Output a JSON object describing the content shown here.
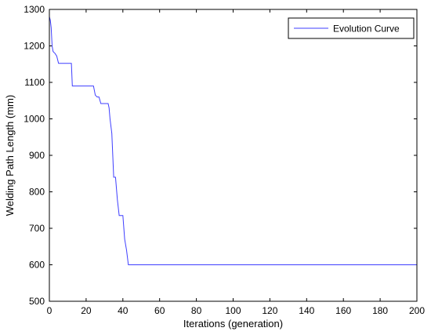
{
  "chart_data": {
    "type": "line",
    "title": "",
    "xlabel": "Iterations (generation)",
    "ylabel": "Welding Path Length (mm)",
    "xlim": [
      0,
      200
    ],
    "ylim": [
      500,
      1300
    ],
    "xticks": [
      0,
      20,
      40,
      60,
      80,
      100,
      120,
      140,
      160,
      180,
      200
    ],
    "yticks": [
      500,
      600,
      700,
      800,
      900,
      1000,
      1100,
      1200,
      1300
    ],
    "grid": false,
    "legend_position": "top-right",
    "series_color": "#3f3fff",
    "series": [
      {
        "name": "Evolution Curve",
        "x": [
          0,
          0.5,
          1,
          1.5,
          2,
          2.5,
          3,
          4,
          5,
          6,
          7,
          8,
          9,
          10,
          11,
          12,
          12.5,
          13,
          15,
          20,
          24,
          25,
          26,
          27,
          28,
          29,
          30,
          31,
          32,
          32.5,
          33,
          34,
          35,
          35.5,
          36,
          37,
          38,
          39,
          40,
          41,
          42,
          43,
          44,
          60,
          100,
          150,
          200
        ],
        "y": [
          1280,
          1270,
          1250,
          1200,
          1185,
          1182,
          1180,
          1172,
          1152,
          1152,
          1152,
          1152,
          1152,
          1152,
          1152,
          1152,
          1090,
          1090,
          1090,
          1090,
          1090,
          1065,
          1060,
          1060,
          1042,
          1042,
          1042,
          1042,
          1042,
          1030,
          1000,
          960,
          840,
          840,
          840,
          778,
          735,
          735,
          735,
          670,
          640,
          600,
          600,
          600,
          600,
          600,
          600
        ]
      }
    ]
  }
}
